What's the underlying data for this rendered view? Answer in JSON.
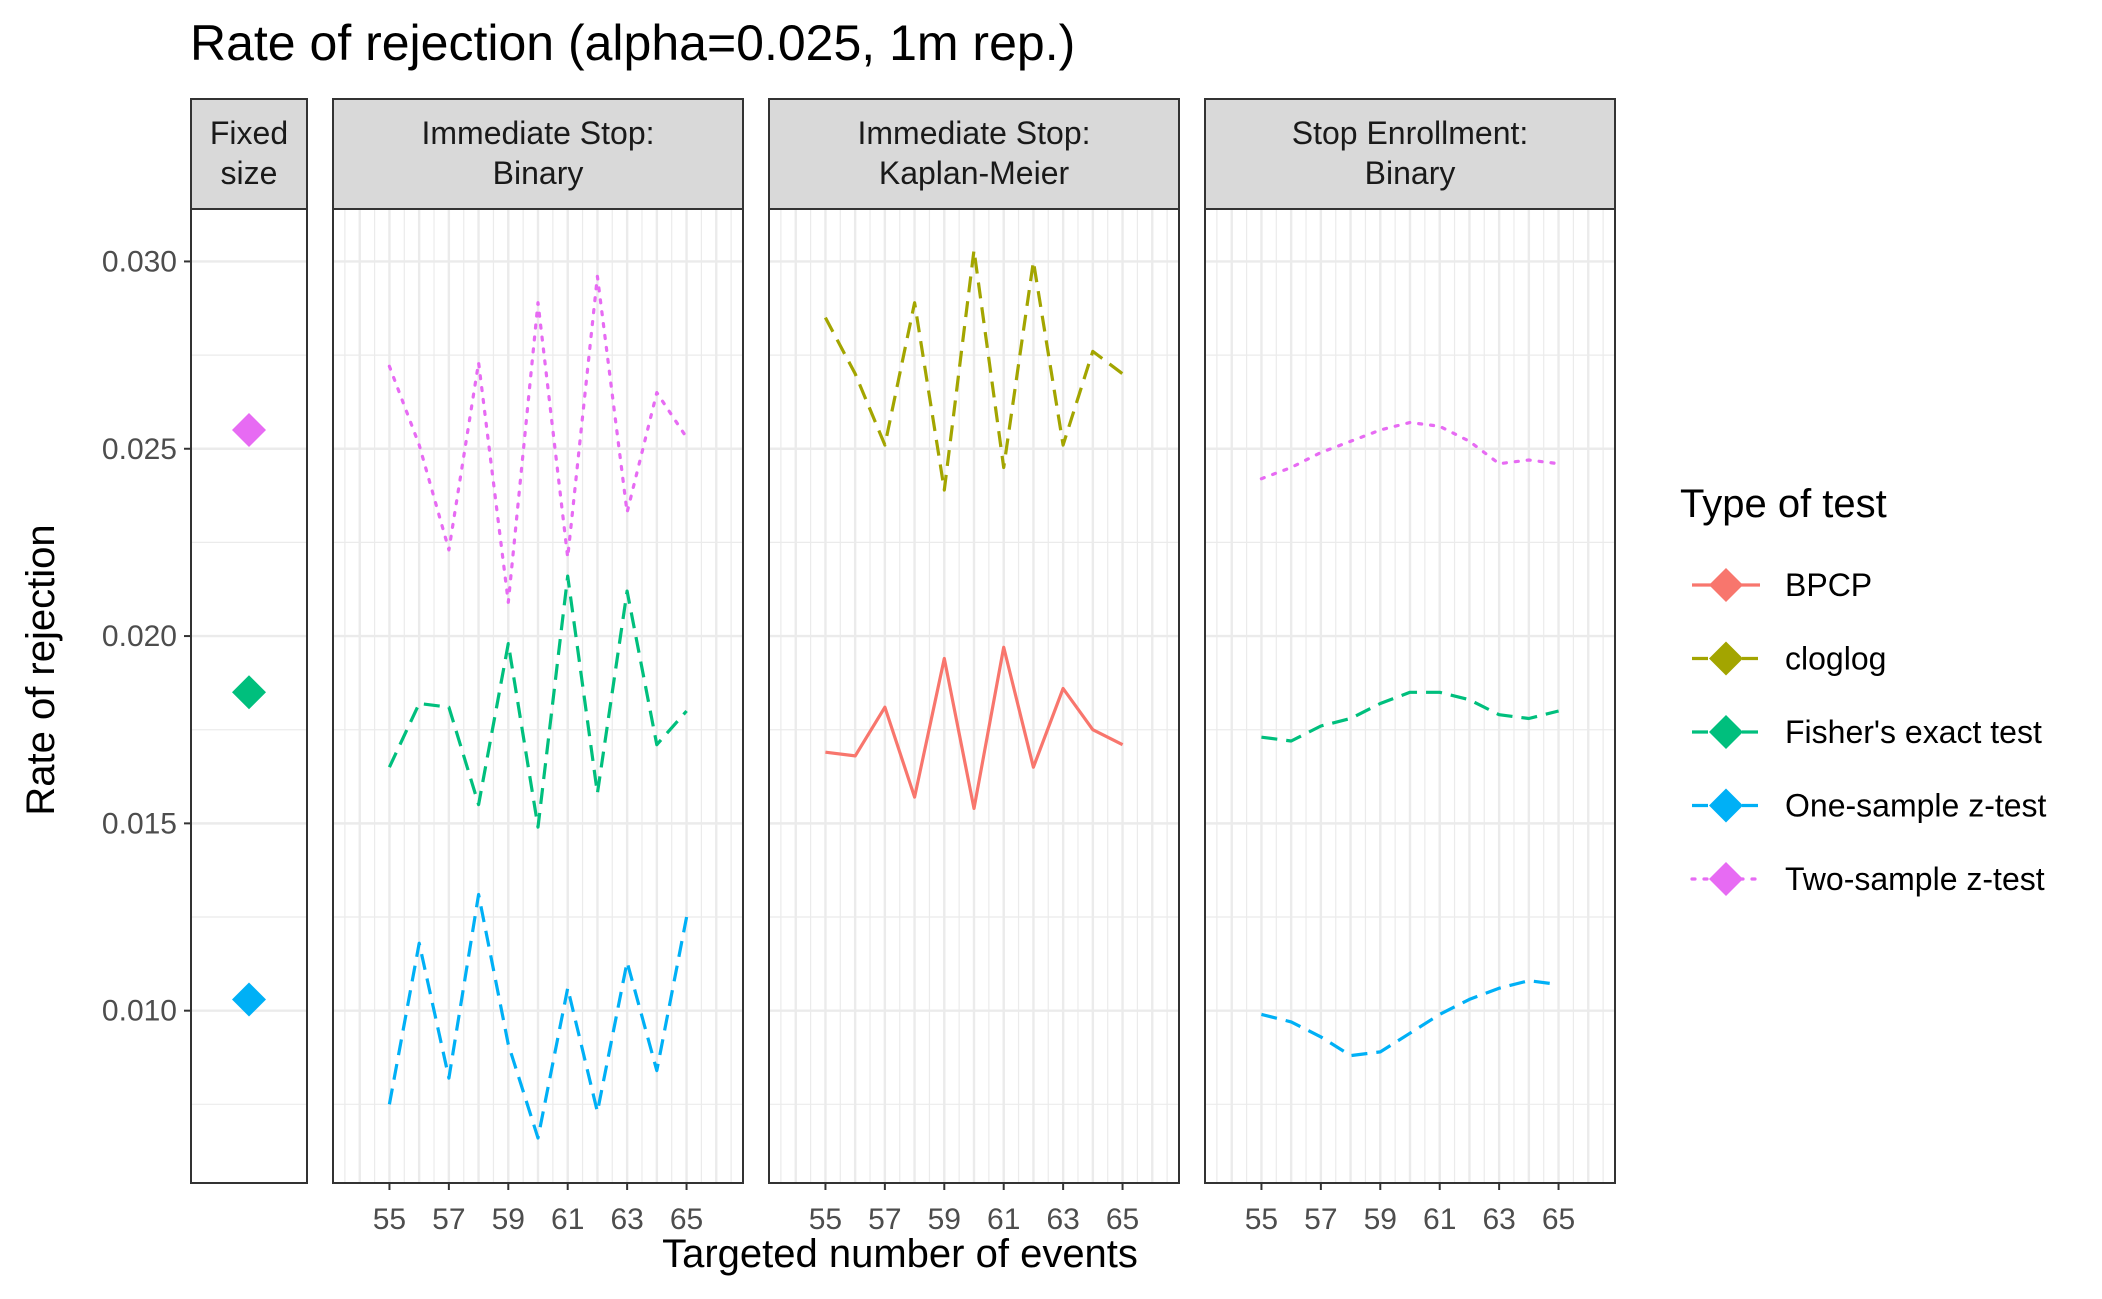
{
  "chart_data": {
    "type": "line",
    "title": "Rate of rejection (alpha=0.025, 1m rep.)",
    "xlabel": "Targeted number of events",
    "ylabel": "Rate of rejection",
    "ylim": [
      0.0054,
      0.0314
    ],
    "y_ticks": [
      0.01,
      0.015,
      0.02,
      0.025,
      0.03
    ],
    "y_tick_labels": [
      "0.010",
      "0.015",
      "0.020",
      "0.025",
      "0.030"
    ],
    "xlim": [
      53.1,
      66.9
    ],
    "x_ticks": [
      55,
      57,
      59,
      61,
      63,
      65
    ],
    "x_tick_labels": [
      "55",
      "57",
      "59",
      "61",
      "63",
      "65"
    ],
    "grid": true,
    "legend": {
      "title": "Type of test",
      "position": "right",
      "entries": [
        {
          "name": "BPCP",
          "color": "#F8766D",
          "dash": "solid"
        },
        {
          "name": "cloglog",
          "color": "#A3A500",
          "dash": "dashed"
        },
        {
          "name": "Fisher's exact test",
          "color": "#00BF7D",
          "dash": "dashed"
        },
        {
          "name": "One-sample z-test",
          "color": "#00B0F6",
          "dash": "dashed"
        },
        {
          "name": "Two-sample z-test",
          "color": "#E76BF3",
          "dash": "dotted"
        }
      ]
    },
    "facets": [
      {
        "label": [
          "Fixed",
          "size"
        ],
        "kind": "points",
        "points": [
          {
            "series": "Two-sample z-test",
            "y": 0.0255
          },
          {
            "series": "Fisher's exact test",
            "y": 0.0185
          },
          {
            "series": "One-sample z-test",
            "y": 0.0103
          }
        ]
      },
      {
        "label": [
          "Immediate Stop:",
          "Binary"
        ],
        "kind": "lines",
        "x": [
          55,
          56,
          57,
          58,
          59,
          60,
          61,
          62,
          63,
          64,
          65
        ],
        "series": [
          {
            "name": "Two-sample z-test",
            "values": [
              0.0272,
              0.0251,
              0.0223,
              0.0273,
              0.0209,
              0.0289,
              0.0221,
              0.0296,
              0.0233,
              0.0265,
              0.0253
            ]
          },
          {
            "name": "Fisher's exact test",
            "values": [
              0.0165,
              0.0182,
              0.0181,
              0.0155,
              0.0198,
              0.0149,
              0.0216,
              0.0158,
              0.0212,
              0.0171,
              0.018
            ]
          },
          {
            "name": "One-sample z-test",
            "values": [
              0.0075,
              0.0118,
              0.0082,
              0.0131,
              0.0091,
              0.0066,
              0.0106,
              0.0073,
              0.0113,
              0.0084,
              0.0125
            ]
          }
        ]
      },
      {
        "label": [
          "Immediate Stop:",
          "Kaplan-Meier"
        ],
        "kind": "lines",
        "x": [
          55,
          56,
          57,
          58,
          59,
          60,
          61,
          62,
          63,
          64,
          65
        ],
        "series": [
          {
            "name": "cloglog",
            "values": [
              0.0285,
              0.027,
              0.0251,
              0.0289,
              0.0239,
              0.0303,
              0.0245,
              0.03,
              0.0251,
              0.0276,
              0.027
            ]
          },
          {
            "name": "BPCP",
            "values": [
              0.0169,
              0.0168,
              0.0181,
              0.0157,
              0.0194,
              0.0154,
              0.0197,
              0.0165,
              0.0186,
              0.0175,
              0.0171
            ]
          }
        ]
      },
      {
        "label": [
          "Stop Enrollment:",
          "Binary"
        ],
        "kind": "lines",
        "x": [
          55,
          56,
          57,
          58,
          59,
          60,
          61,
          62,
          63,
          64,
          65
        ],
        "series": [
          {
            "name": "Two-sample z-test",
            "values": [
              0.0242,
              0.0245,
              0.0249,
              0.0252,
              0.0255,
              0.0257,
              0.0256,
              0.0252,
              0.0246,
              0.0247,
              0.0246
            ]
          },
          {
            "name": "Fisher's exact test",
            "values": [
              0.0173,
              0.0172,
              0.0176,
              0.0178,
              0.0182,
              0.0185,
              0.0185,
              0.0183,
              0.0179,
              0.0178,
              0.018
            ]
          },
          {
            "name": "One-sample z-test",
            "values": [
              0.0099,
              0.0097,
              0.0093,
              0.0088,
              0.0089,
              0.0094,
              0.0099,
              0.0103,
              0.0106,
              0.0108,
              0.0107
            ]
          }
        ]
      }
    ]
  }
}
